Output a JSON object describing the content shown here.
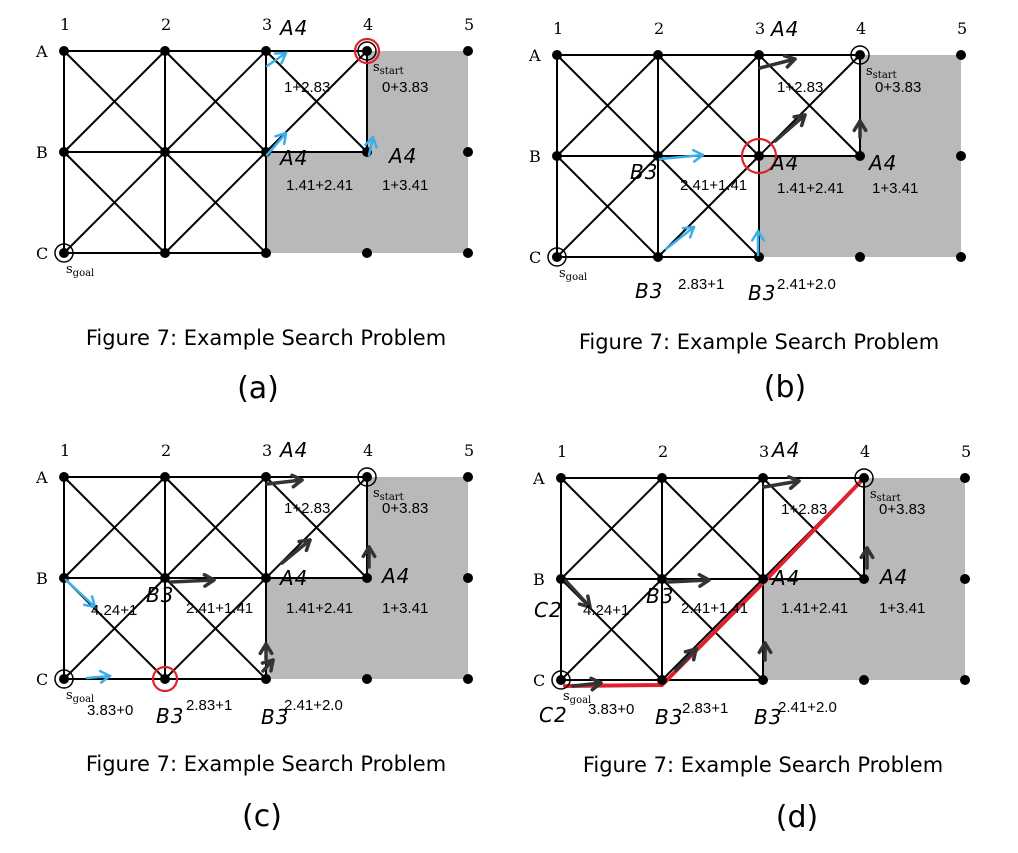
{
  "columns": [
    "1",
    "2",
    "3",
    "4",
    "5"
  ],
  "rows": [
    "A",
    "B",
    "C"
  ],
  "start_label": "s",
  "start_sub": "start",
  "goal_label": "s",
  "goal_sub": "goal",
  "caption": "Figure 7: Example Search Problem",
  "colors": {
    "blocked": "#b9b9b9",
    "grid": "#000000",
    "expansion_arrow": "#3aaee8",
    "parent_arrow": "#333333",
    "highlight": "#e0202e"
  },
  "panels": [
    {
      "label": "(a)",
      "annotations": [
        {
          "text": "1+2.83",
          "kind": "print"
        },
        {
          "text": "0+3.83",
          "kind": "print"
        },
        {
          "text": "1.41+2.41",
          "kind": "print"
        },
        {
          "text": "1+3.41",
          "kind": "print"
        },
        {
          "text": "A4",
          "kind": "hand"
        },
        {
          "text": "A4",
          "kind": "hand"
        },
        {
          "text": "A4",
          "kind": "hand"
        }
      ]
    },
    {
      "label": "(b)",
      "annotations": [
        {
          "text": "1+2.83",
          "kind": "print"
        },
        {
          "text": "0+3.83",
          "kind": "print"
        },
        {
          "text": "2.41+1.41",
          "kind": "print"
        },
        {
          "text": "1.41+2.41",
          "kind": "print"
        },
        {
          "text": "1+3.41",
          "kind": "print"
        },
        {
          "text": "2.83+1",
          "kind": "print"
        },
        {
          "text": "2.41+2.0",
          "kind": "print"
        },
        {
          "text": "A4",
          "kind": "hand"
        },
        {
          "text": "A4",
          "kind": "hand"
        },
        {
          "text": "A4",
          "kind": "hand"
        },
        {
          "text": "B3",
          "kind": "hand"
        },
        {
          "text": "B3",
          "kind": "hand"
        },
        {
          "text": "B3",
          "kind": "hand"
        }
      ]
    },
    {
      "label": "(c)",
      "annotations": [
        {
          "text": "1+2.83",
          "kind": "print"
        },
        {
          "text": "0+3.83",
          "kind": "print"
        },
        {
          "text": "4.24+1",
          "kind": "print"
        },
        {
          "text": "2.41+1.41",
          "kind": "print"
        },
        {
          "text": "1.41+2.41",
          "kind": "print"
        },
        {
          "text": "1+3.41",
          "kind": "print"
        },
        {
          "text": "3.83+0",
          "kind": "print"
        },
        {
          "text": "2.83+1",
          "kind": "print"
        },
        {
          "text": "2.41+2.0",
          "kind": "print"
        },
        {
          "text": "A4",
          "kind": "hand"
        },
        {
          "text": "A4",
          "kind": "hand"
        },
        {
          "text": "A4",
          "kind": "hand"
        },
        {
          "text": "B3",
          "kind": "hand"
        },
        {
          "text": "B3",
          "kind": "hand"
        },
        {
          "text": "B3",
          "kind": "hand"
        }
      ]
    },
    {
      "label": "(d)",
      "annotations": [
        {
          "text": "1+2.83",
          "kind": "print"
        },
        {
          "text": "0+3.83",
          "kind": "print"
        },
        {
          "text": "4.24+1",
          "kind": "print"
        },
        {
          "text": "2.41+1.41",
          "kind": "print"
        },
        {
          "text": "1.41+2.41",
          "kind": "print"
        },
        {
          "text": "1+3.41",
          "kind": "print"
        },
        {
          "text": "3.83+0",
          "kind": "print"
        },
        {
          "text": "2.83+1",
          "kind": "print"
        },
        {
          "text": "2.41+2.0",
          "kind": "print"
        },
        {
          "text": "A4",
          "kind": "hand"
        },
        {
          "text": "A4",
          "kind": "hand"
        },
        {
          "text": "A4",
          "kind": "hand"
        },
        {
          "text": "B3",
          "kind": "hand"
        },
        {
          "text": "B3",
          "kind": "hand"
        },
        {
          "text": "B3",
          "kind": "hand"
        },
        {
          "text": "C2",
          "kind": "hand"
        },
        {
          "text": "C2",
          "kind": "hand"
        }
      ]
    }
  ]
}
